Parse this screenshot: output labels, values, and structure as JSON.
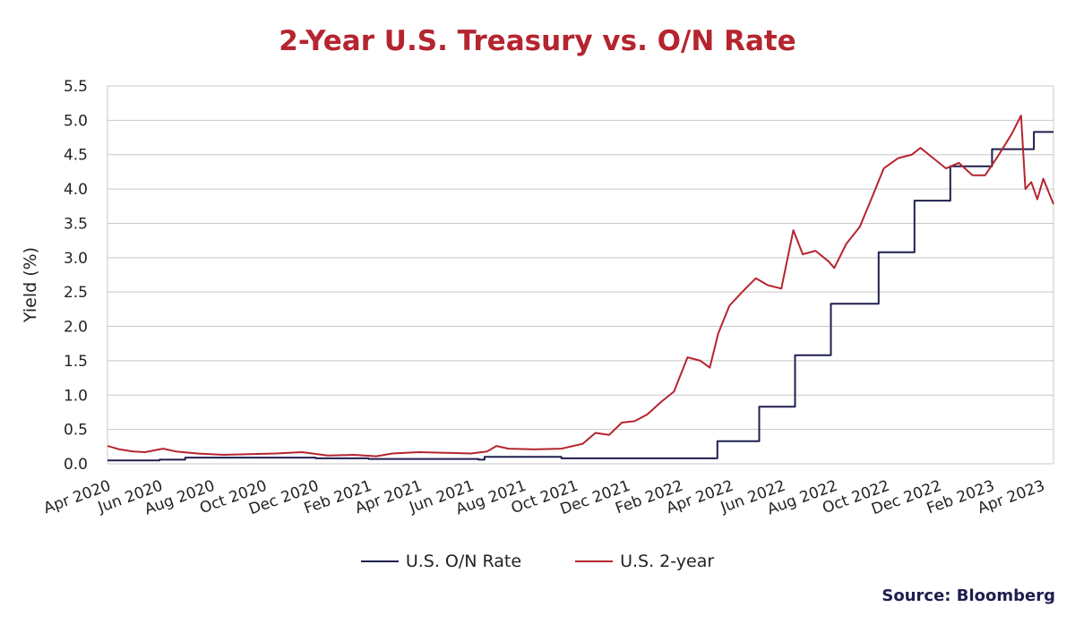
{
  "chart_data": {
    "type": "line",
    "title": "2-Year U.S. Treasury vs. O/N Rate",
    "ylabel": "Yield (%)",
    "xlabel": "",
    "ylim": [
      0.0,
      5.5
    ],
    "yticks": [
      "0.0",
      "0.5",
      "1.0",
      "1.5",
      "2.0",
      "2.5",
      "3.0",
      "3.5",
      "4.0",
      "4.5",
      "5.0",
      "5.5"
    ],
    "xlim": [
      "2020-04-01",
      "2023-04-15"
    ],
    "xticks": [
      {
        "date": "2020-04-01",
        "label": "Apr 2020"
      },
      {
        "date": "2020-06-01",
        "label": "Jun 2020"
      },
      {
        "date": "2020-08-01",
        "label": "Aug 2020"
      },
      {
        "date": "2020-10-01",
        "label": "Oct 2020"
      },
      {
        "date": "2020-12-01",
        "label": "Dec 2020"
      },
      {
        "date": "2021-02-01",
        "label": "Feb 2021"
      },
      {
        "date": "2021-04-01",
        "label": "Apr 2021"
      },
      {
        "date": "2021-06-01",
        "label": "Jun 2021"
      },
      {
        "date": "2021-08-01",
        "label": "Aug 2021"
      },
      {
        "date": "2021-10-01",
        "label": "Oct 2021"
      },
      {
        "date": "2021-12-01",
        "label": "Dec 2021"
      },
      {
        "date": "2022-02-01",
        "label": "Feb 2022"
      },
      {
        "date": "2022-04-01",
        "label": "Apr 2022"
      },
      {
        "date": "2022-06-01",
        "label": "Jun 2022"
      },
      {
        "date": "2022-08-01",
        "label": "Aug 2022"
      },
      {
        "date": "2022-10-01",
        "label": "Oct 2022"
      },
      {
        "date": "2022-12-01",
        "label": "Dec 2022"
      },
      {
        "date": "2023-02-01",
        "label": "Feb 2023"
      },
      {
        "date": "2023-04-01",
        "label": "Apr 2023"
      }
    ],
    "grid": true,
    "legend_position": "bottom",
    "series": [
      {
        "name": "U.S. O/N Rate",
        "color": "#1e1f4f",
        "step": true,
        "points": [
          [
            "2020-04-01",
            0.05
          ],
          [
            "2020-06-01",
            0.06
          ],
          [
            "2020-07-01",
            0.09
          ],
          [
            "2020-09-01",
            0.09
          ],
          [
            "2020-12-01",
            0.08
          ],
          [
            "2021-02-01",
            0.07
          ],
          [
            "2021-06-10",
            0.06
          ],
          [
            "2021-06-17",
            0.1
          ],
          [
            "2021-09-15",
            0.08
          ],
          [
            "2022-03-17",
            0.33
          ],
          [
            "2022-05-05",
            0.83
          ],
          [
            "2022-06-16",
            1.58
          ],
          [
            "2022-07-28",
            2.33
          ],
          [
            "2022-09-22",
            3.08
          ],
          [
            "2022-11-03",
            3.83
          ],
          [
            "2022-12-15",
            4.33
          ],
          [
            "2023-02-02",
            4.58
          ],
          [
            "2023-03-23",
            4.83
          ],
          [
            "2023-04-15",
            4.83
          ]
        ]
      },
      {
        "name": "U.S. 2-year",
        "color": "#b5252f",
        "step": false,
        "points": [
          [
            "2020-04-01",
            0.26
          ],
          [
            "2020-04-15",
            0.21
          ],
          [
            "2020-05-01",
            0.18
          ],
          [
            "2020-05-15",
            0.17
          ],
          [
            "2020-06-05",
            0.22
          ],
          [
            "2020-06-20",
            0.18
          ],
          [
            "2020-07-15",
            0.15
          ],
          [
            "2020-08-15",
            0.13
          ],
          [
            "2020-09-15",
            0.14
          ],
          [
            "2020-10-15",
            0.15
          ],
          [
            "2020-11-15",
            0.17
          ],
          [
            "2020-12-15",
            0.12
          ],
          [
            "2021-01-15",
            0.13
          ],
          [
            "2021-02-10",
            0.11
          ],
          [
            "2021-03-01",
            0.15
          ],
          [
            "2021-04-01",
            0.17
          ],
          [
            "2021-05-01",
            0.16
          ],
          [
            "2021-06-01",
            0.15
          ],
          [
            "2021-06-20",
            0.18
          ],
          [
            "2021-07-01",
            0.26
          ],
          [
            "2021-07-15",
            0.22
          ],
          [
            "2021-08-15",
            0.21
          ],
          [
            "2021-09-15",
            0.22
          ],
          [
            "2021-10-10",
            0.29
          ],
          [
            "2021-10-25",
            0.45
          ],
          [
            "2021-11-10",
            0.42
          ],
          [
            "2021-11-25",
            0.6
          ],
          [
            "2021-12-10",
            0.62
          ],
          [
            "2021-12-25",
            0.72
          ],
          [
            "2022-01-10",
            0.9
          ],
          [
            "2022-01-25",
            1.05
          ],
          [
            "2022-02-10",
            1.55
          ],
          [
            "2022-02-25",
            1.5
          ],
          [
            "2022-03-08",
            1.4
          ],
          [
            "2022-03-18",
            1.9
          ],
          [
            "2022-03-31",
            2.3
          ],
          [
            "2022-04-15",
            2.5
          ],
          [
            "2022-05-01",
            2.7
          ],
          [
            "2022-05-15",
            2.6
          ],
          [
            "2022-05-31",
            2.55
          ],
          [
            "2022-06-14",
            3.4
          ],
          [
            "2022-06-25",
            3.05
          ],
          [
            "2022-07-10",
            3.1
          ],
          [
            "2022-07-25",
            2.95
          ],
          [
            "2022-08-01",
            2.85
          ],
          [
            "2022-08-15",
            3.2
          ],
          [
            "2022-08-31",
            3.45
          ],
          [
            "2022-09-15",
            3.9
          ],
          [
            "2022-09-28",
            4.3
          ],
          [
            "2022-10-15",
            4.45
          ],
          [
            "2022-10-31",
            4.5
          ],
          [
            "2022-11-10",
            4.6
          ],
          [
            "2022-11-25",
            4.45
          ],
          [
            "2022-12-10",
            4.3
          ],
          [
            "2022-12-25",
            4.38
          ],
          [
            "2023-01-10",
            4.2
          ],
          [
            "2023-01-25",
            4.2
          ],
          [
            "2023-02-10",
            4.5
          ],
          [
            "2023-02-25",
            4.8
          ],
          [
            "2023-03-08",
            5.07
          ],
          [
            "2023-03-13",
            4.0
          ],
          [
            "2023-03-20",
            4.1
          ],
          [
            "2023-03-27",
            3.85
          ],
          [
            "2023-04-03",
            4.15
          ],
          [
            "2023-04-15",
            3.78
          ]
        ]
      }
    ]
  },
  "legend": {
    "items": [
      {
        "label": "U.S. O/N Rate",
        "color": "#1e1f4f"
      },
      {
        "label": "U.S. 2-year",
        "color": "#b5252f"
      }
    ]
  },
  "source": "Source: Bloomberg"
}
